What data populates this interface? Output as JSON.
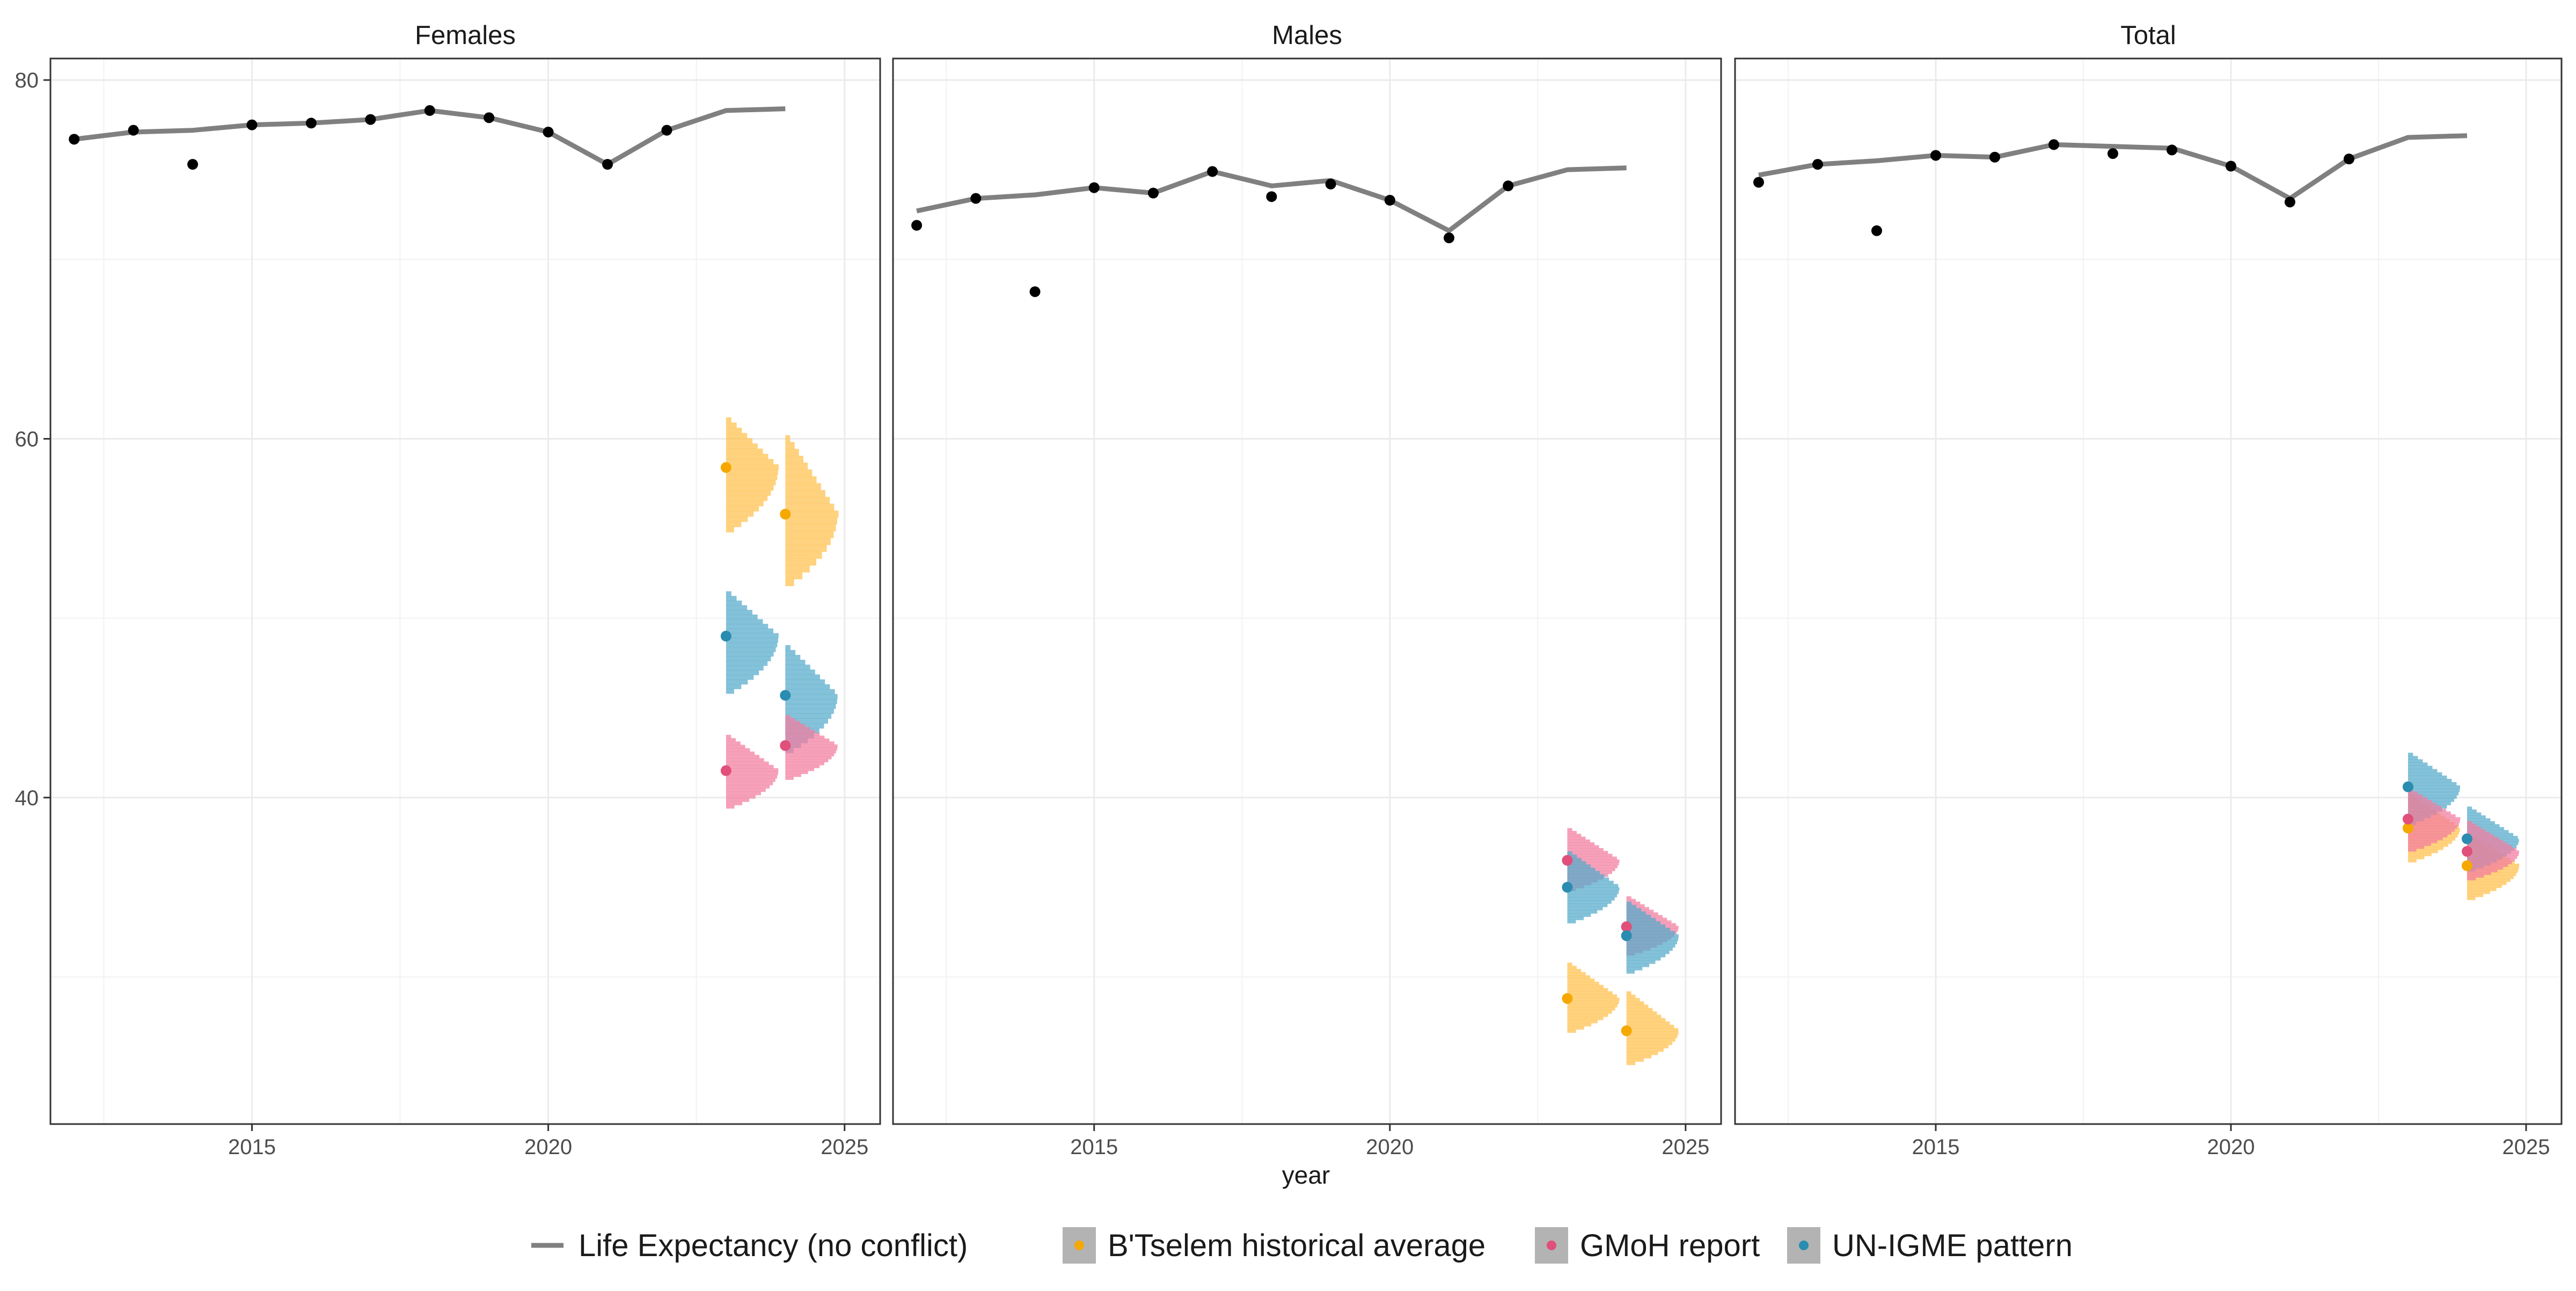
{
  "chart_data": {
    "type": "line",
    "facets": [
      {
        "name": "Females",
        "observed_points": [
          {
            "x": 2012,
            "y": 76.7
          },
          {
            "x": 2013,
            "y": 77.2
          },
          {
            "x": 2014,
            "y": 75.3
          },
          {
            "x": 2015,
            "y": 77.5
          },
          {
            "x": 2016,
            "y": 77.6
          },
          {
            "x": 2017,
            "y": 77.8
          },
          {
            "x": 2018,
            "y": 78.3
          },
          {
            "x": 2019,
            "y": 77.9
          },
          {
            "x": 2020,
            "y": 77.1
          },
          {
            "x": 2021,
            "y": 75.3
          },
          {
            "x": 2022,
            "y": 77.2
          }
        ],
        "life_expectancy_line": [
          {
            "x": 2012,
            "y": 76.7
          },
          {
            "x": 2013,
            "y": 77.1
          },
          {
            "x": 2014,
            "y": 77.2
          },
          {
            "x": 2015,
            "y": 77.5
          },
          {
            "x": 2016,
            "y": 77.6
          },
          {
            "x": 2017,
            "y": 77.8
          },
          {
            "x": 2018,
            "y": 78.3
          },
          {
            "x": 2019,
            "y": 77.9
          },
          {
            "x": 2020,
            "y": 77.1
          },
          {
            "x": 2021,
            "y": 75.3
          },
          {
            "x": 2022,
            "y": 77.2
          },
          {
            "x": 2023,
            "y": 78.3
          },
          {
            "x": 2024,
            "y": 78.4
          }
        ],
        "scenarios": [
          {
            "series": "B'Tselem historical average",
            "x": 2023,
            "mean": 58.4,
            "low": 54.8,
            "high": 61.2
          },
          {
            "series": "B'Tselem historical average",
            "x": 2024,
            "mean": 55.8,
            "low": 51.8,
            "high": 60.2
          },
          {
            "series": "UN-IGME pattern",
            "x": 2023,
            "mean": 49.0,
            "low": 45.8,
            "high": 51.5
          },
          {
            "series": "UN-IGME pattern",
            "x": 2024,
            "mean": 45.7,
            "low": 42.5,
            "high": 48.5
          },
          {
            "series": "GMoH report",
            "x": 2023,
            "mean": 41.5,
            "low": 39.4,
            "high": 43.5
          },
          {
            "series": "GMoH report",
            "x": 2024,
            "mean": 42.9,
            "low": 41.0,
            "high": 44.6
          }
        ]
      },
      {
        "name": "Males",
        "observed_points": [
          {
            "x": 2012,
            "y": 71.9
          },
          {
            "x": 2013,
            "y": 73.4
          },
          {
            "x": 2014,
            "y": 68.2
          },
          {
            "x": 2015,
            "y": 74.0
          },
          {
            "x": 2016,
            "y": 73.7
          },
          {
            "x": 2017,
            "y": 74.9
          },
          {
            "x": 2018,
            "y": 73.5
          },
          {
            "x": 2019,
            "y": 74.2
          },
          {
            "x": 2020,
            "y": 73.3
          },
          {
            "x": 2021,
            "y": 71.2
          },
          {
            "x": 2022,
            "y": 74.1
          }
        ],
        "life_expectancy_line": [
          {
            "x": 2012,
            "y": 72.7
          },
          {
            "x": 2013,
            "y": 73.4
          },
          {
            "x": 2014,
            "y": 73.6
          },
          {
            "x": 2015,
            "y": 74.0
          },
          {
            "x": 2016,
            "y": 73.7
          },
          {
            "x": 2017,
            "y": 74.9
          },
          {
            "x": 2018,
            "y": 74.1
          },
          {
            "x": 2019,
            "y": 74.4
          },
          {
            "x": 2020,
            "y": 73.3
          },
          {
            "x": 2021,
            "y": 71.6
          },
          {
            "x": 2022,
            "y": 74.1
          },
          {
            "x": 2023,
            "y": 75.0
          },
          {
            "x": 2024,
            "y": 75.1
          }
        ],
        "scenarios": [
          {
            "series": "GMoH report",
            "x": 2023,
            "mean": 36.5,
            "low": 34.8,
            "high": 38.3
          },
          {
            "series": "GMoH report",
            "x": 2024,
            "mean": 32.8,
            "low": 31.2,
            "high": 34.5
          },
          {
            "series": "UN-IGME pattern",
            "x": 2023,
            "mean": 35.0,
            "low": 33.0,
            "high": 37.0
          },
          {
            "series": "UN-IGME pattern",
            "x": 2024,
            "mean": 32.3,
            "low": 30.2,
            "high": 34.2
          },
          {
            "series": "B'Tselem historical average",
            "x": 2023,
            "mean": 28.8,
            "low": 26.9,
            "high": 30.8
          },
          {
            "series": "B'Tselem historical average",
            "x": 2024,
            "mean": 27.0,
            "low": 25.1,
            "high": 29.2
          }
        ]
      },
      {
        "name": "Total",
        "observed_points": [
          {
            "x": 2012,
            "y": 74.3
          },
          {
            "x": 2013,
            "y": 75.3
          },
          {
            "x": 2014,
            "y": 71.6
          },
          {
            "x": 2015,
            "y": 75.8
          },
          {
            "x": 2016,
            "y": 75.7
          },
          {
            "x": 2017,
            "y": 76.4
          },
          {
            "x": 2018,
            "y": 75.9
          },
          {
            "x": 2019,
            "y": 76.1
          },
          {
            "x": 2020,
            "y": 75.2
          },
          {
            "x": 2021,
            "y": 73.2
          },
          {
            "x": 2022,
            "y": 75.6
          }
        ],
        "life_expectancy_line": [
          {
            "x": 2012,
            "y": 74.7
          },
          {
            "x": 2013,
            "y": 75.3
          },
          {
            "x": 2014,
            "y": 75.5
          },
          {
            "x": 2015,
            "y": 75.8
          },
          {
            "x": 2016,
            "y": 75.7
          },
          {
            "x": 2017,
            "y": 76.4
          },
          {
            "x": 2018,
            "y": 76.3
          },
          {
            "x": 2019,
            "y": 76.2
          },
          {
            "x": 2020,
            "y": 75.2
          },
          {
            "x": 2021,
            "y": 73.4
          },
          {
            "x": 2022,
            "y": 75.6
          },
          {
            "x": 2023,
            "y": 76.8
          },
          {
            "x": 2024,
            "y": 76.9
          }
        ],
        "scenarios": [
          {
            "series": "B'Tselem historical average",
            "x": 2023,
            "mean": 38.3,
            "low": 36.4,
            "high": 40.2
          },
          {
            "series": "B'Tselem historical average",
            "x": 2024,
            "mean": 36.2,
            "low": 34.3,
            "high": 38.0
          },
          {
            "series": "UN-IGME pattern",
            "x": 2023,
            "mean": 40.6,
            "low": 38.5,
            "high": 42.5
          },
          {
            "series": "UN-IGME pattern",
            "x": 2024,
            "mean": 37.7,
            "low": 35.9,
            "high": 39.5
          },
          {
            "series": "GMoH report",
            "x": 2023,
            "mean": 38.8,
            "low": 37.0,
            "high": 40.5
          },
          {
            "series": "GMoH report",
            "x": 2024,
            "mean": 37.0,
            "low": 35.4,
            "high": 38.7
          }
        ]
      }
    ],
    "x_ticks": [
      2015,
      2020,
      2025
    ],
    "y_ticks": [
      40,
      60,
      80
    ],
    "xlim": [
      2011.6,
      2025.6
    ],
    "ylim": [
      21.8,
      81.2
    ],
    "xlabel": "year",
    "ylabel": "",
    "grid": true,
    "legend_position": "bottom",
    "legend": [
      {
        "label": "Life Expectancy (no conflict)",
        "kind": "line",
        "color": "#808080"
      },
      {
        "label": "B'Tselem historical average",
        "kind": "point",
        "color": "#f5a800",
        "fill": "#ffc04d"
      },
      {
        "label": "GMoH report",
        "kind": "point",
        "color": "#e0507a",
        "fill": "#f27da0"
      },
      {
        "label": "UN-IGME pattern",
        "kind": "point",
        "color": "#2a8cb0",
        "fill": "#55abcb"
      }
    ]
  }
}
